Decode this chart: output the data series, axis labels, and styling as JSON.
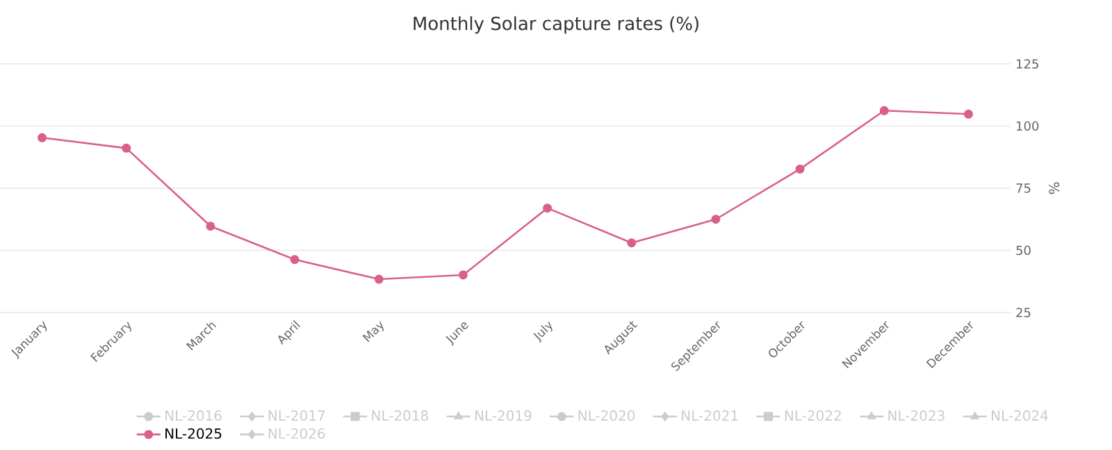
{
  "chart_data": {
    "type": "line",
    "title": "Monthly Solar capture rates (%)",
    "ylabel": "%",
    "categories": [
      "January",
      "February",
      "March",
      "April",
      "May",
      "June",
      "July",
      "August",
      "September",
      "October",
      "November",
      "December"
    ],
    "series": [
      {
        "name": "NL-2016",
        "color": "#cccccc",
        "marker": "circle",
        "values": [
          null,
          null,
          null,
          null,
          null,
          null,
          null,
          null,
          null,
          null,
          null,
          null
        ]
      },
      {
        "name": "NL-2017",
        "color": "#cccccc",
        "marker": "diamond",
        "values": [
          null,
          null,
          null,
          null,
          null,
          null,
          null,
          null,
          null,
          null,
          null,
          null
        ]
      },
      {
        "name": "NL-2018",
        "color": "#cccccc",
        "marker": "square",
        "values": [
          null,
          null,
          null,
          null,
          null,
          null,
          null,
          null,
          null,
          null,
          null,
          null
        ]
      },
      {
        "name": "NL-2019",
        "color": "#cccccc",
        "marker": "triangle",
        "values": [
          null,
          null,
          null,
          null,
          null,
          null,
          null,
          null,
          null,
          null,
          null,
          null
        ]
      },
      {
        "name": "NL-2020",
        "color": "#cccccc",
        "marker": "circle",
        "values": [
          null,
          null,
          null,
          null,
          null,
          null,
          null,
          null,
          null,
          null,
          null,
          null
        ]
      },
      {
        "name": "NL-2021",
        "color": "#cccccc",
        "marker": "diamond",
        "values": [
          null,
          null,
          null,
          null,
          null,
          null,
          null,
          null,
          null,
          null,
          null,
          null
        ]
      },
      {
        "name": "NL-2022",
        "color": "#cccccc",
        "marker": "square",
        "values": [
          null,
          null,
          null,
          null,
          null,
          null,
          null,
          null,
          null,
          null,
          null,
          null
        ]
      },
      {
        "name": "NL-2023",
        "color": "#cccccc",
        "marker": "triangle",
        "values": [
          null,
          null,
          null,
          null,
          null,
          null,
          null,
          null,
          null,
          null,
          null,
          null
        ]
      },
      {
        "name": "NL-2024",
        "color": "#cccccc",
        "marker": "triangle",
        "values": [
          null,
          null,
          null,
          null,
          null,
          null,
          null,
          null,
          null,
          null,
          null,
          null
        ]
      },
      {
        "name": "NL-2025",
        "color": "#d9608a",
        "marker": "circle",
        "values": [
          95.3,
          91.1,
          59.7,
          46.3,
          38.4,
          40.1,
          67.0,
          53.0,
          62.5,
          82.7,
          106.2,
          104.8
        ]
      },
      {
        "name": "NL-2026",
        "color": "#cccccc",
        "marker": "diamond",
        "values": [
          null,
          null,
          null,
          null,
          null,
          null,
          null,
          null,
          null,
          null,
          null,
          null
        ]
      }
    ],
    "ylim": [
      25,
      125
    ],
    "yticks": [
      25,
      50,
      75,
      100,
      125
    ],
    "grid": "y",
    "legend": "bottom",
    "line_style": "solid"
  }
}
